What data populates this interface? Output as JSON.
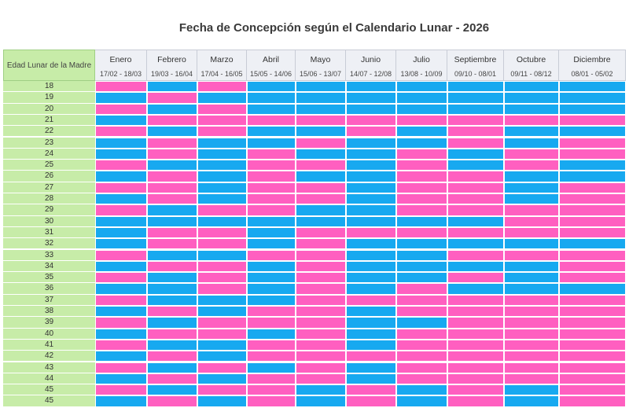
{
  "title": "Fecha de Concepción según el Calendario Lunar - 2026",
  "corner_label": "Edad Lunar de la Madre",
  "colors": {
    "pink": "#ff5fc0",
    "blue": "#17a9f0",
    "age_bg": "#c7eca8",
    "header_bg": "#eef0f5"
  },
  "chart_data": {
    "type": "heatmap",
    "title": "Fecha de Concepción según el Calendario Lunar - 2026",
    "row_header": "Edad Lunar de la Madre",
    "columns": [
      {
        "name": "Enero",
        "range": "17/02 - 18/03"
      },
      {
        "name": "Febrero",
        "range": "19/03 - 16/04"
      },
      {
        "name": "Marzo",
        "range": "17/04 - 16/05"
      },
      {
        "name": "Abril",
        "range": "15/05 - 14/06"
      },
      {
        "name": "Mayo",
        "range": "15/06 - 13/07"
      },
      {
        "name": "Junio",
        "range": "14/07 - 12/08"
      },
      {
        "name": "Julio",
        "range": "13/08 - 10/09"
      },
      {
        "name": "Septiembre",
        "range": "09/10 - 08/01"
      },
      {
        "name": "Octubre",
        "range": "09/11 - 08/12"
      },
      {
        "name": "Diciembre",
        "range": "08/01 - 05/02"
      }
    ],
    "rows": [
      "18",
      "19",
      "20",
      "21",
      "22",
      "23",
      "24",
      "25",
      "26",
      "27",
      "28",
      "29",
      "30",
      "31",
      "32",
      "33",
      "34",
      "35",
      "36",
      "37",
      "38",
      "39",
      "40",
      "41",
      "42",
      "43",
      "44",
      "45",
      "45"
    ],
    "cells": [
      [
        "P",
        "B",
        "P",
        "B",
        "B",
        "B",
        "B",
        "B",
        "B",
        "B"
      ],
      [
        "B",
        "P",
        "B",
        "B",
        "B",
        "B",
        "B",
        "B",
        "B",
        "B"
      ],
      [
        "P",
        "B",
        "P",
        "B",
        "B",
        "B",
        "B",
        "B",
        "B",
        "B"
      ],
      [
        "B",
        "P",
        "P",
        "P",
        "P",
        "P",
        "P",
        "P",
        "P",
        "P"
      ],
      [
        "P",
        "B",
        "P",
        "B",
        "B",
        "P",
        "B",
        "P",
        "B",
        "B"
      ],
      [
        "B",
        "P",
        "B",
        "B",
        "P",
        "B",
        "B",
        "P",
        "B",
        "P"
      ],
      [
        "B",
        "P",
        "B",
        "P",
        "B",
        "B",
        "P",
        "B",
        "P",
        "P"
      ],
      [
        "P",
        "B",
        "B",
        "P",
        "P",
        "B",
        "P",
        "B",
        "P",
        "B"
      ],
      [
        "B",
        "P",
        "B",
        "P",
        "B",
        "B",
        "P",
        "P",
        "B",
        "B"
      ],
      [
        "P",
        "P",
        "B",
        "P",
        "P",
        "B",
        "P",
        "P",
        "B",
        "P"
      ],
      [
        "B",
        "P",
        "B",
        "P",
        "P",
        "B",
        "P",
        "P",
        "B",
        "P"
      ],
      [
        "P",
        "B",
        "P",
        "P",
        "B",
        "B",
        "P",
        "P",
        "P",
        "P"
      ],
      [
        "B",
        "B",
        "B",
        "B",
        "B",
        "B",
        "B",
        "B",
        "P",
        "P"
      ],
      [
        "B",
        "P",
        "P",
        "B",
        "P",
        "P",
        "P",
        "P",
        "P",
        "P"
      ],
      [
        "B",
        "P",
        "P",
        "B",
        "P",
        "B",
        "B",
        "B",
        "B",
        "B"
      ],
      [
        "P",
        "B",
        "B",
        "P",
        "P",
        "B",
        "B",
        "P",
        "P",
        "P"
      ],
      [
        "B",
        "P",
        "P",
        "B",
        "P",
        "B",
        "B",
        "B",
        "B",
        "P"
      ],
      [
        "P",
        "B",
        "P",
        "B",
        "P",
        "B",
        "B",
        "P",
        "B",
        "P"
      ],
      [
        "B",
        "B",
        "P",
        "B",
        "P",
        "B",
        "P",
        "B",
        "B",
        "B"
      ],
      [
        "P",
        "B",
        "B",
        "B",
        "P",
        "P",
        "P",
        "P",
        "P",
        "P"
      ],
      [
        "B",
        "P",
        "B",
        "P",
        "P",
        "B",
        "P",
        "P",
        "P",
        "P"
      ],
      [
        "P",
        "B",
        "P",
        "P",
        "P",
        "B",
        "B",
        "P",
        "P",
        "P"
      ],
      [
        "B",
        "P",
        "P",
        "B",
        "P",
        "B",
        "P",
        "P",
        "P",
        "P"
      ],
      [
        "P",
        "B",
        "B",
        "P",
        "P",
        "B",
        "P",
        "P",
        "P",
        "P"
      ],
      [
        "B",
        "P",
        "B",
        "P",
        "P",
        "P",
        "P",
        "P",
        "P",
        "P"
      ],
      [
        "P",
        "B",
        "P",
        "B",
        "P",
        "B",
        "P",
        "P",
        "P",
        "P"
      ],
      [
        "B",
        "P",
        "B",
        "P",
        "P",
        "B",
        "P",
        "P",
        "P",
        "P"
      ],
      [
        "P",
        "B",
        "P",
        "P",
        "B",
        "P",
        "B",
        "P",
        "B",
        "P"
      ],
      [
        "B",
        "P",
        "B",
        "P",
        "B",
        "P",
        "B",
        "P",
        "B",
        "P"
      ]
    ]
  }
}
